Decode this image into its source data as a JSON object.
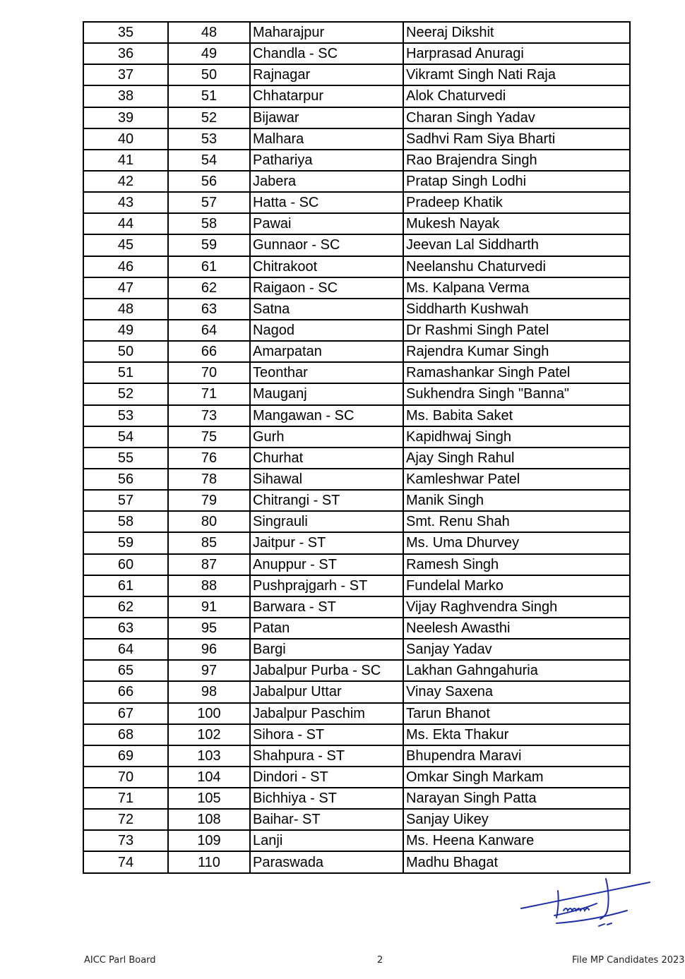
{
  "table": {
    "rows": [
      [
        "35",
        "48",
        "Maharajpur",
        "Neeraj Dikshit"
      ],
      [
        "36",
        "49",
        "Chandla - SC",
        "Harprasad Anuragi"
      ],
      [
        "37",
        "50",
        "Rajnagar",
        "Vikramt Singh Nati Raja"
      ],
      [
        "38",
        "51",
        "Chhatarpur",
        "Alok Chaturvedi"
      ],
      [
        "39",
        "52",
        "Bijawar",
        "Charan Singh Yadav"
      ],
      [
        "40",
        "53",
        "Malhara",
        "Sadhvi Ram Siya Bharti"
      ],
      [
        "41",
        "54",
        "Pathariya",
        "Rao Brajendra Singh"
      ],
      [
        "42",
        "56",
        "Jabera",
        "Pratap Singh Lodhi"
      ],
      [
        "43",
        "57",
        "Hatta - SC",
        "Pradeep Khatik"
      ],
      [
        "44",
        "58",
        "Pawai",
        "Mukesh Nayak"
      ],
      [
        "45",
        "59",
        "Gunnaor - SC",
        "Jeevan Lal Siddharth"
      ],
      [
        "46",
        "61",
        "Chitrakoot",
        "Neelanshu Chaturvedi"
      ],
      [
        "47",
        "62",
        "Raigaon - SC",
        "Ms. Kalpana Verma"
      ],
      [
        "48",
        "63",
        "Satna",
        "Siddharth Kushwah"
      ],
      [
        "49",
        "64",
        "Nagod",
        "Dr Rashmi Singh Patel"
      ],
      [
        "50",
        "66",
        "Amarpatan",
        "Rajendra Kumar Singh"
      ],
      [
        "51",
        "70",
        "Teonthar",
        "Ramashankar Singh Patel"
      ],
      [
        "52",
        "71",
        "Mauganj",
        "Sukhendra Singh \"Banna\""
      ],
      [
        "53",
        "73",
        "Mangawan - SC",
        "Ms. Babita Saket"
      ],
      [
        "54",
        "75",
        "Gurh",
        "Kapidhwaj Singh"
      ],
      [
        "55",
        "76",
        "Churhat",
        "Ajay Singh Rahul"
      ],
      [
        "56",
        "78",
        "Sihawal",
        "Kamleshwar Patel"
      ],
      [
        "57",
        "79",
        "Chitrangi - ST",
        "Manik Singh"
      ],
      [
        "58",
        "80",
        "Singrauli",
        "Smt. Renu Shah"
      ],
      [
        "59",
        "85",
        "Jaitpur - ST",
        "Ms. Uma Dhurvey"
      ],
      [
        "60",
        "87",
        "Anuppur - ST",
        "Ramesh Singh"
      ],
      [
        "61",
        "88",
        "Pushprajgarh - ST",
        "Fundelal Marko"
      ],
      [
        "62",
        "91",
        "Barwara - ST",
        "Vijay Raghvendra Singh"
      ],
      [
        "63",
        "95",
        "Patan",
        "Neelesh Awasthi"
      ],
      [
        "64",
        "96",
        "Bargi",
        "Sanjay Yadav"
      ],
      [
        "65",
        "97",
        "Jabalpur Purba - SC",
        "Lakhan Gahngahuria"
      ],
      [
        "66",
        "98",
        "Jabalpur Uttar",
        "Vinay Saxena"
      ],
      [
        "67",
        "100",
        "Jabalpur Paschim",
        "Tarun Bhanot"
      ],
      [
        "68",
        "102",
        "Sihora - ST",
        "Ms. Ekta Thakur"
      ],
      [
        "69",
        "103",
        "Shahpura - ST",
        "Bhupendra Maravi"
      ],
      [
        "70",
        "104",
        "Dindori - ST",
        "Omkar Singh Markam"
      ],
      [
        "71",
        "105",
        "Bichhiya - ST",
        "Narayan Singh Patta"
      ],
      [
        "72",
        "108",
        "Baihar- ST",
        "Sanjay Uikey"
      ],
      [
        "73",
        "109",
        "Lanji",
        "Ms. Heena Kanware"
      ],
      [
        "74",
        "110",
        "Paraswada",
        "Madhu Bhagat"
      ]
    ]
  },
  "footer": {
    "left": "AICC Parl Board",
    "page": "2",
    "right": "File MP Candidates 2023"
  },
  "signature": {
    "color": "#1f2fa8"
  }
}
